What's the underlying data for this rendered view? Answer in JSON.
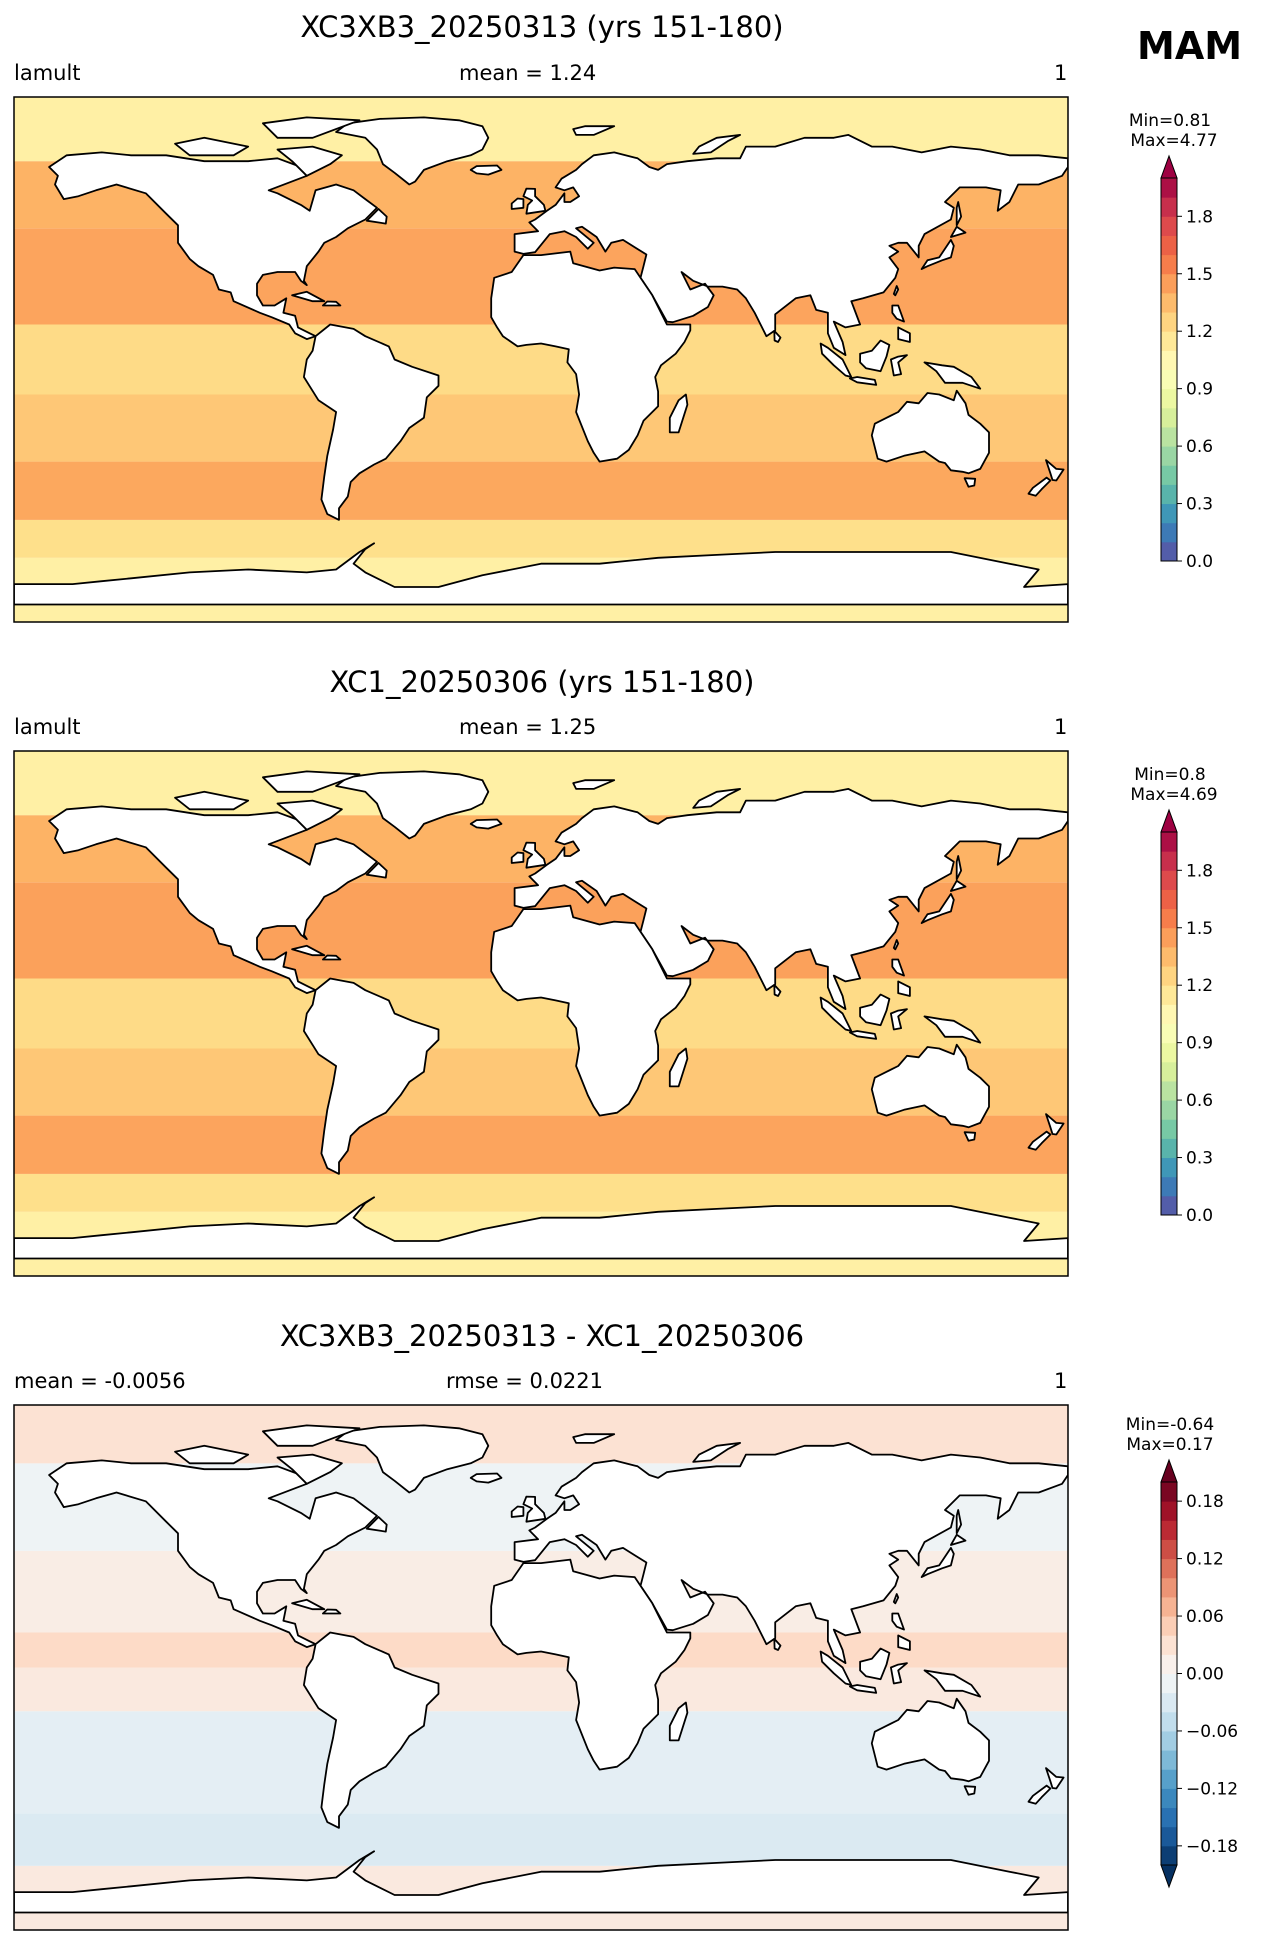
{
  "season": "MAM",
  "chart_data": [
    {
      "type": "heatmap",
      "title": "XC3XB3_20250313 (yrs 151-180)",
      "left_label": "lamult",
      "center_label": "mean = 1.24",
      "right_label": "1",
      "stats": {
        "min": "Min=0.81",
        "max": "Max=4.77"
      },
      "colorbar": {
        "ticks": [
          "0.0",
          "0.3",
          "0.6",
          "0.9",
          "1.2",
          "1.5",
          "1.8"
        ],
        "range": [
          0.0,
          2.0
        ],
        "extend": "max",
        "colormap": "Spectral_r",
        "colors": [
          "#5e4fa2",
          "#3288bd",
          "#66c2a5",
          "#abdda4",
          "#e6f598",
          "#ffffbf",
          "#fee08b",
          "#fdae61",
          "#f46d43",
          "#d53e4f",
          "#9e0142"
        ]
      },
      "regions": [
        {
          "lat": [
            -90,
            -68
          ],
          "value": 1.1
        },
        {
          "lat": [
            -68,
            -55
          ],
          "value": 1.2
        },
        {
          "lat": [
            -55,
            -35
          ],
          "value": 1.42
        },
        {
          "lat": [
            -35,
            -12
          ],
          "value": 1.3
        },
        {
          "lat": [
            -12,
            12
          ],
          "value": 1.22
        },
        {
          "lat": [
            12,
            45
          ],
          "value": 1.43
        },
        {
          "lat": [
            45,
            68
          ],
          "value": 1.38
        },
        {
          "lat": [
            68,
            90
          ],
          "value": 1.1
        }
      ]
    },
    {
      "type": "heatmap",
      "title": "XC1_20250306 (yrs 151-180)",
      "left_label": "lamult",
      "center_label": "mean = 1.25",
      "right_label": "1",
      "stats": {
        "min": "Min=0.8",
        "max": "Max=4.69"
      },
      "colorbar": {
        "ticks": [
          "0.0",
          "0.3",
          "0.6",
          "0.9",
          "1.2",
          "1.5",
          "1.8"
        ],
        "range": [
          0.0,
          2.0
        ],
        "extend": "max",
        "colormap": "Spectral_r",
        "colors": [
          "#5e4fa2",
          "#3288bd",
          "#66c2a5",
          "#abdda4",
          "#e6f598",
          "#ffffbf",
          "#fee08b",
          "#fdae61",
          "#f46d43",
          "#d53e4f",
          "#9e0142"
        ]
      },
      "regions": [
        {
          "lat": [
            -90,
            -68
          ],
          "value": 1.1
        },
        {
          "lat": [
            -68,
            -55
          ],
          "value": 1.2
        },
        {
          "lat": [
            -55,
            -35
          ],
          "value": 1.43
        },
        {
          "lat": [
            -35,
            -12
          ],
          "value": 1.3
        },
        {
          "lat": [
            -12,
            12
          ],
          "value": 1.22
        },
        {
          "lat": [
            12,
            45
          ],
          "value": 1.44
        },
        {
          "lat": [
            45,
            68
          ],
          "value": 1.38
        },
        {
          "lat": [
            68,
            90
          ],
          "value": 1.1
        }
      ]
    },
    {
      "type": "heatmap",
      "title": "XC3XB3_20250313 - XC1_20250306",
      "left_label": "mean = -0.0056",
      "center_label": "rmse = 0.0221",
      "right_label": "1",
      "stats": {
        "min": "Min=-0.64",
        "max": "Max=0.17"
      },
      "colorbar": {
        "ticks": [
          "−0.18",
          "−0.12",
          "−0.06",
          "0.00",
          "0.06",
          "0.12",
          "0.18"
        ],
        "range": [
          -0.2,
          0.2
        ],
        "extend": "both",
        "colormap": "RdBu_r",
        "colors": [
          "#053061",
          "#2166ac",
          "#4393c3",
          "#92c5de",
          "#d1e5f0",
          "#f7f7f7",
          "#fddbc7",
          "#f4a582",
          "#d6604d",
          "#b2182b",
          "#67001f"
        ]
      },
      "regions": [
        {
          "lat": [
            -90,
            -68
          ],
          "value": 0.02
        },
        {
          "lat": [
            -68,
            -50
          ],
          "value": -0.03
        },
        {
          "lat": [
            -50,
            -15
          ],
          "value": -0.02
        },
        {
          "lat": [
            -15,
            0
          ],
          "value": 0.02
        },
        {
          "lat": [
            0,
            12
          ],
          "value": 0.04
        },
        {
          "lat": [
            12,
            40
          ],
          "value": 0.015
        },
        {
          "lat": [
            40,
            70
          ],
          "value": -0.01
        },
        {
          "lat": [
            70,
            90
          ],
          "value": 0.03
        }
      ]
    }
  ]
}
